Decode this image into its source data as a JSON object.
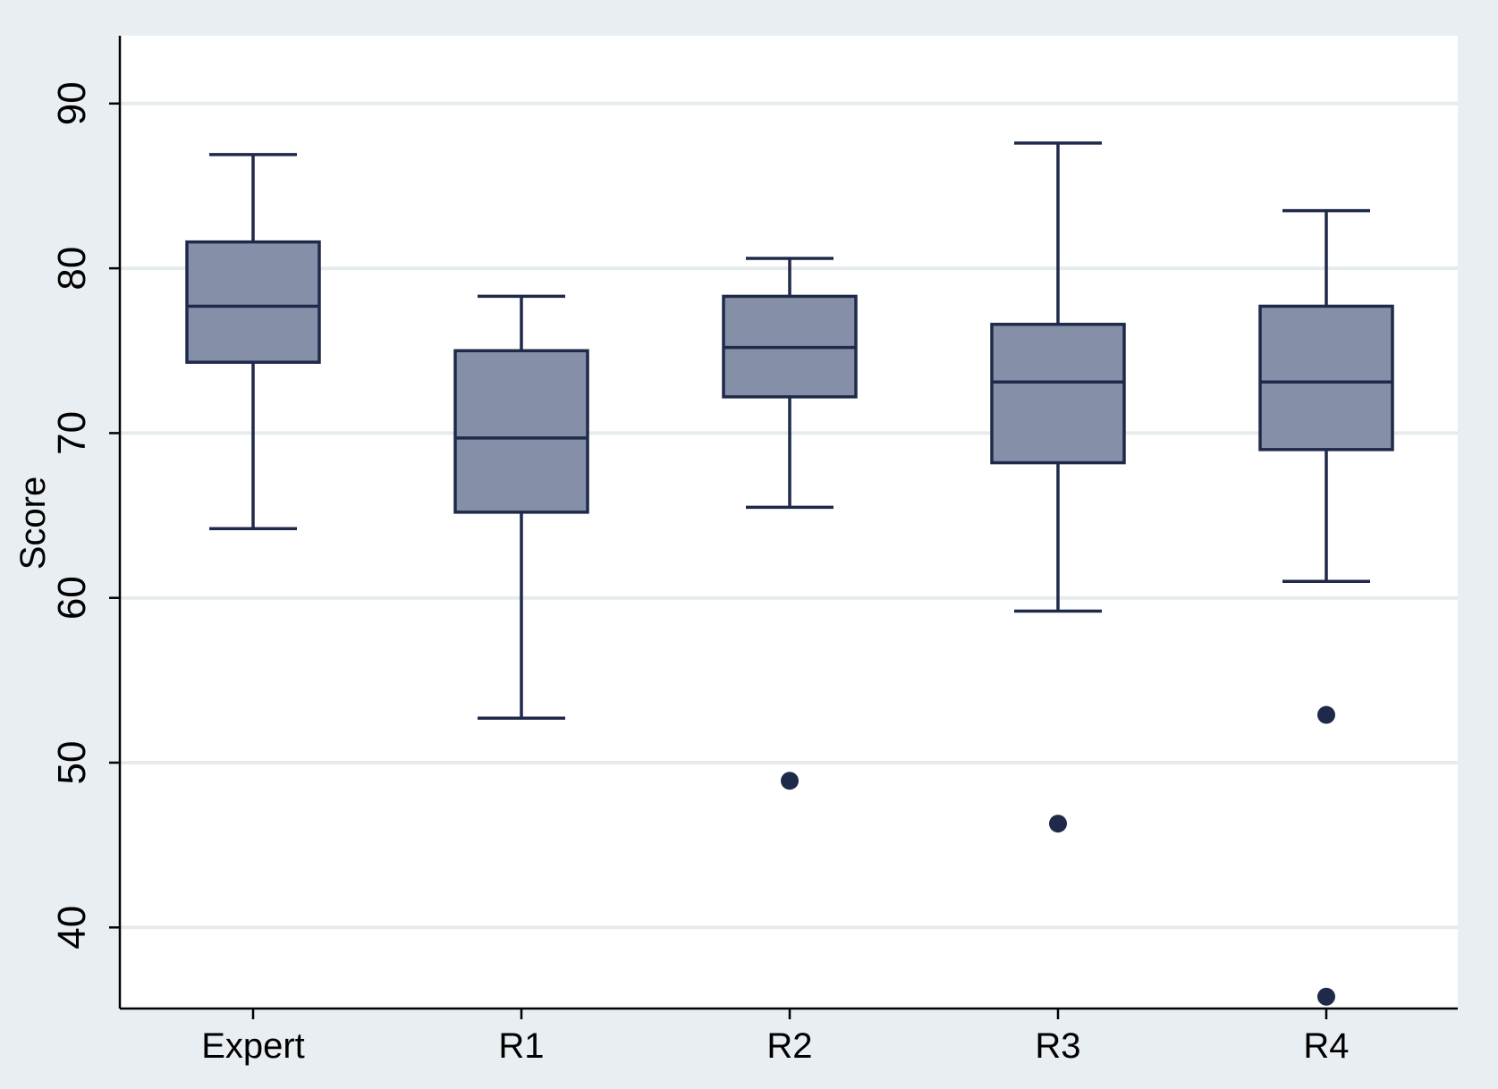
{
  "chart_data": {
    "type": "box",
    "title": "",
    "xlabel": "",
    "ylabel": "Score",
    "ylim": [
      34,
      92.3
    ],
    "yticks": [
      40,
      50,
      60,
      70,
      80,
      90
    ],
    "grid": true,
    "legend": "none",
    "categories": [
      "Expert",
      "R1",
      "R2",
      "R3",
      "R4"
    ],
    "boxes": [
      {
        "category": "Expert",
        "whisker_low": 64.2,
        "q1": 74.3,
        "median": 77.7,
        "q3": 81.6,
        "whisker_high": 86.9,
        "outliers": []
      },
      {
        "category": "R1",
        "whisker_low": 52.7,
        "q1": 65.2,
        "median": 69.7,
        "q3": 75.0,
        "whisker_high": 78.3,
        "outliers": []
      },
      {
        "category": "R2",
        "whisker_low": 65.5,
        "q1": 72.2,
        "median": 75.2,
        "q3": 78.3,
        "whisker_high": 80.6,
        "outliers": [
          48.9
        ]
      },
      {
        "category": "R3",
        "whisker_low": 59.2,
        "q1": 68.2,
        "median": 73.1,
        "q3": 76.6,
        "whisker_high": 87.6,
        "outliers": [
          46.3
        ]
      },
      {
        "category": "R4",
        "whisker_low": 61.0,
        "q1": 69.0,
        "median": 73.1,
        "q3": 77.7,
        "whisker_high": 83.5,
        "outliers": [
          52.9,
          35.8
        ]
      }
    ],
    "colors": {
      "box_fill": "#8590a8",
      "box_stroke": "#1f2a4a",
      "outlier": "#1f2a4a",
      "grid": "#e6ebee",
      "outer_background": "#e9eef2",
      "plot_background": "#ffffff"
    }
  }
}
